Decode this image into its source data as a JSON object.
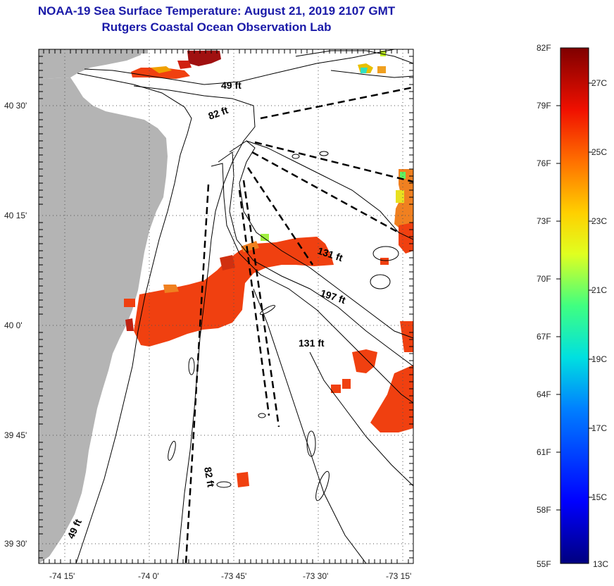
{
  "title": "NOAA-19 Sea Surface Temperature:  August 21, 2019 2107 GMT",
  "subtitle": "Rutgers Coastal Ocean Observation Lab",
  "lat_labels": [
    "40 30'",
    "40 15'",
    "40 0'",
    "39 45'",
    "39 30'"
  ],
  "lon_labels": [
    "-74 15'",
    "-74 0'",
    "-73 45'",
    "-73 30'",
    "-73 15'"
  ],
  "depth_labels": [
    "49 ft",
    "82 ft",
    "131 ft",
    "197 ft",
    "131 ft",
    "82 ft",
    "49 ft"
  ],
  "colorbar": {
    "f_labels": [
      "82F",
      "79F",
      "76F",
      "73F",
      "70F",
      "67F",
      "64F",
      "61F",
      "58F",
      "55F"
    ],
    "c_labels": [
      "27C",
      "25C",
      "23C",
      "21C",
      "19C",
      "17C",
      "15C",
      "13C"
    ]
  },
  "colors": {
    "land": "#b4b4b4",
    "title": "#1a1aa8",
    "sst_warm": "#f04010"
  }
}
